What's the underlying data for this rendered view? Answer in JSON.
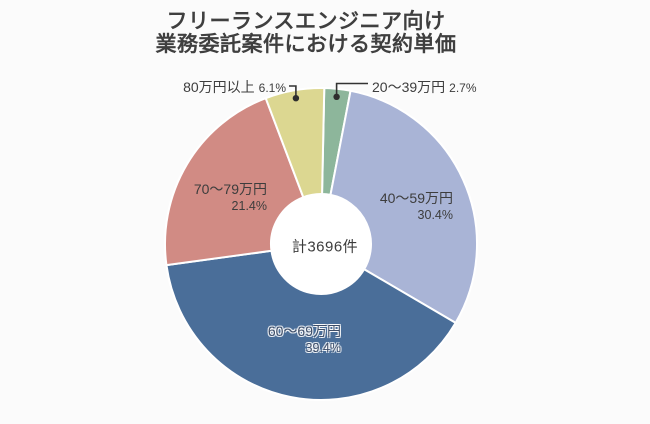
{
  "title": {
    "line1": "フリーランスエンジニア向け",
    "line2": "業務委託案件における契約単価"
  },
  "chart_data": {
    "type": "pie",
    "donut": true,
    "title": "フリーランスエンジニア向け 業務委託案件における契約単価",
    "center_label": "計3696件",
    "total_count": 3696,
    "unit": "件",
    "direction": "clockwise",
    "start_position": "top",
    "rotation_deg": 1.2,
    "legend": "none",
    "slices": [
      {
        "id": "20-39",
        "label": "20〜39万円",
        "pct": 2.7,
        "pct_label": "2.7%",
        "color": "#8db69b",
        "label_position": "outside-top-right"
      },
      {
        "id": "40-59",
        "label": "40〜59万円",
        "pct": 30.4,
        "pct_label": "30.4%",
        "color": "#a9b4d6",
        "label_position": "inside"
      },
      {
        "id": "60-69",
        "label": "60〜69万円",
        "pct": 39.4,
        "pct_label": "39.4%",
        "color": "#4a6e99",
        "label_position": "inside"
      },
      {
        "id": "70-79",
        "label": "70〜79万円",
        "pct": 21.4,
        "pct_label": "21.4%",
        "color": "#d18b84",
        "label_position": "inside"
      },
      {
        "id": "80plus",
        "label": "80万円以上",
        "pct": 6.1,
        "pct_label": "6.1%",
        "color": "#dcd791",
        "label_position": "outside-top-left"
      }
    ],
    "colors": {
      "background": "#fbfbfb",
      "text": "#3d3d3d",
      "leader_line": "#333333",
      "slice_gap": "#ffffff"
    }
  }
}
